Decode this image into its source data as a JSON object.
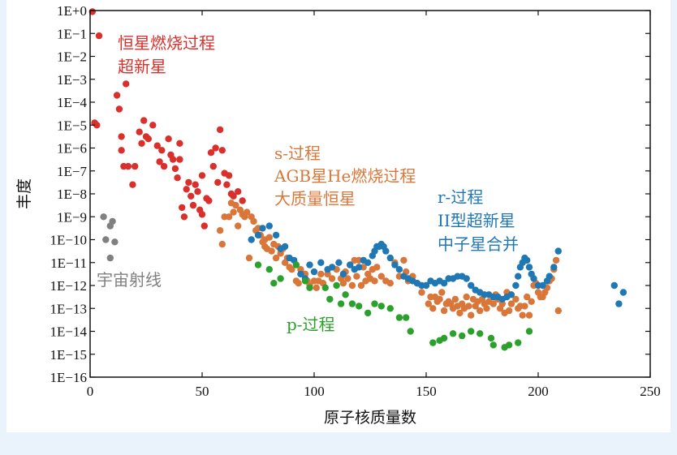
{
  "chart_data": {
    "type": "scatter",
    "xlabel": "原子核质量数",
    "ylabel": "丰度",
    "xlim": [
      0,
      250
    ],
    "ylim": [
      -16,
      0
    ],
    "y_scale": "log10",
    "xticks": [
      0,
      50,
      100,
      150,
      200,
      250
    ],
    "ytick_labels": [
      "1E+0",
      "1E−1",
      "1E−2",
      "1E−3",
      "1E−4",
      "1E−5",
      "1E−6",
      "1E−7",
      "1E−8",
      "1E−9",
      "1E−10",
      "1E−11",
      "1E−12",
      "1E−13",
      "1E−14",
      "1E−15",
      "1E−16"
    ],
    "grid": false,
    "annotations": [
      {
        "id": "red-1",
        "lines": [
          "恒星燃烧过程",
          "超新星"
        ],
        "color": "#d9302c"
      },
      {
        "id": "gray-1",
        "lines": [
          "宇宙射线"
        ],
        "color": "#808080"
      },
      {
        "id": "orange-1",
        "lines": [
          "s-过程",
          "AGB星He燃烧过程",
          "大质量恒星"
        ],
        "color": "#d9773a"
      },
      {
        "id": "blue-1",
        "lines": [
          "r-过程",
          "II型超新星",
          "中子星合并"
        ],
        "color": "#1f78b4"
      },
      {
        "id": "green-1",
        "lines": [
          "p-过程"
        ],
        "color": "#2ca02c"
      }
    ],
    "series": [
      {
        "color": "#d9302c",
        "points": [
          [
            1,
            -0.05
          ],
          [
            4,
            -1.1
          ],
          [
            2,
            -4.9
          ],
          [
            3,
            -5.0
          ],
          [
            12,
            -3.7
          ],
          [
            16,
            -3.2
          ],
          [
            13,
            -4.3
          ],
          [
            14,
            -5.5
          ],
          [
            14,
            -6.1
          ],
          [
            15,
            -6.8
          ],
          [
            17,
            -6.8
          ],
          [
            19,
            -7.6
          ],
          [
            20,
            -6.8
          ],
          [
            22,
            -5.3
          ],
          [
            24,
            -4.8
          ],
          [
            23,
            -5.8
          ],
          [
            25,
            -5.5
          ],
          [
            26,
            -5.6
          ],
          [
            28,
            -5.0
          ],
          [
            30,
            -5.9
          ],
          [
            31,
            -6.6
          ],
          [
            32,
            -6.1
          ],
          [
            33,
            -6.8
          ],
          [
            35,
            -5.6
          ],
          [
            36,
            -6.3
          ],
          [
            37,
            -6.5
          ],
          [
            38,
            -6.9
          ],
          [
            39,
            -7.3
          ],
          [
            40,
            -6.5
          ],
          [
            40,
            -5.8
          ],
          [
            41,
            -8.6
          ],
          [
            42,
            -9.0
          ],
          [
            43,
            -7.8
          ],
          [
            44,
            -7.5
          ],
          [
            45,
            -8.1
          ],
          [
            46,
            -8.5
          ],
          [
            47,
            -7.6
          ],
          [
            48,
            -7.9
          ],
          [
            49,
            -8.7
          ],
          [
            50,
            -8.9
          ],
          [
            50,
            -7.2
          ],
          [
            51,
            -9.4
          ],
          [
            52,
            -8.2
          ],
          [
            53,
            -8.3
          ],
          [
            54,
            -6.2
          ],
          [
            55,
            -6.8
          ],
          [
            56,
            -6.0
          ],
          [
            57,
            -7.5
          ],
          [
            58,
            -5.2
          ],
          [
            59,
            -6.1
          ],
          [
            60,
            -7.1
          ],
          [
            61,
            -7.6
          ],
          [
            62,
            -7.2
          ],
          [
            63,
            -8.0
          ],
          [
            64,
            -8.1
          ],
          [
            66,
            -7.9
          ],
          [
            68,
            -8.3
          ]
        ]
      },
      {
        "color": "#808080",
        "points": [
          [
            6,
            -9.0
          ],
          [
            7,
            -10.0
          ],
          [
            9,
            -10.8
          ],
          [
            9,
            -9.4
          ],
          [
            10,
            -9.2
          ],
          [
            11,
            -10.1
          ]
        ]
      },
      {
        "color": "#d9773a",
        "points": [
          [
            59,
            -10.2
          ],
          [
            60,
            -9.0
          ],
          [
            62,
            -9.0
          ],
          [
            63,
            -8.4
          ],
          [
            64,
            -8.8
          ],
          [
            65,
            -8.5
          ],
          [
            66,
            -9.4
          ],
          [
            67,
            -8.7
          ],
          [
            68,
            -8.9
          ],
          [
            69,
            -9.0
          ],
          [
            70,
            -8.8
          ],
          [
            71,
            -10.8
          ],
          [
            72,
            -9.0
          ],
          [
            73,
            -9.2
          ],
          [
            74,
            -9.6
          ],
          [
            75,
            -9.5
          ],
          [
            76,
            -9.8
          ],
          [
            77,
            -10.1
          ],
          [
            78,
            -10.0
          ],
          [
            79,
            -10.4
          ],
          [
            80,
            -9.9
          ],
          [
            81,
            -10.5
          ],
          [
            82,
            -10.2
          ],
          [
            83,
            -10.8
          ],
          [
            84,
            -10.3
          ],
          [
            85,
            -10.6
          ],
          [
            86,
            -10.4
          ],
          [
            87,
            -11.0
          ],
          [
            88,
            -10.8
          ],
          [
            89,
            -11.2
          ],
          [
            90,
            -11.3
          ],
          [
            92,
            -11.8
          ],
          [
            94,
            -11.3
          ],
          [
            95,
            -11.5
          ],
          [
            96,
            -11.5
          ],
          [
            97,
            -11.8
          ],
          [
            98,
            -12.0
          ],
          [
            100,
            -11.8
          ],
          [
            101,
            -12.1
          ],
          [
            102,
            -11.8
          ],
          [
            103,
            -11.5
          ],
          [
            104,
            -11.9
          ],
          [
            106,
            -11.5
          ],
          [
            108,
            -11.7
          ],
          [
            110,
            -11.3
          ],
          [
            112,
            -11.7
          ],
          [
            113,
            -11.9
          ],
          [
            114,
            -11.4
          ],
          [
            115,
            -11.7
          ],
          [
            116,
            -11.1
          ],
          [
            117,
            -12.0
          ],
          [
            118,
            -10.9
          ],
          [
            119,
            -11.6
          ],
          [
            120,
            -10.9
          ],
          [
            121,
            -12.0
          ],
          [
            122,
            -11.2
          ],
          [
            123,
            -11.8
          ],
          [
            124,
            -11.5
          ],
          [
            125,
            -11.7
          ],
          [
            126,
            -11.3
          ],
          [
            127,
            -11.8
          ],
          [
            128,
            -11.2
          ],
          [
            130,
            -11.6
          ],
          [
            132,
            -11.8
          ],
          [
            134,
            -11.9
          ],
          [
            136,
            -11.0
          ],
          [
            138,
            -11.6
          ],
          [
            140,
            -10.9
          ],
          [
            141,
            -11.4
          ],
          [
            142,
            -11.8
          ],
          [
            144,
            -11.6
          ],
          [
            146,
            -11.9
          ],
          [
            148,
            -12.3
          ],
          [
            150,
            -12.0
          ],
          [
            151,
            -12.8
          ],
          [
            152,
            -12.5
          ],
          [
            153,
            -13.0
          ],
          [
            154,
            -12.5
          ],
          [
            155,
            -12.7
          ],
          [
            156,
            -12.6
          ],
          [
            157,
            -12.3
          ],
          [
            158,
            -13.1
          ],
          [
            159,
            -12.8
          ],
          [
            160,
            -12.7
          ],
          [
            161,
            -12.8
          ],
          [
            162,
            -13.0
          ],
          [
            163,
            -12.6
          ],
          [
            164,
            -12.9
          ],
          [
            165,
            -13.2
          ],
          [
            166,
            -12.8
          ],
          [
            167,
            -13.0
          ],
          [
            168,
            -12.5
          ],
          [
            169,
            -12.9
          ],
          [
            170,
            -13.3
          ],
          [
            171,
            -12.6
          ],
          [
            172,
            -12.9
          ],
          [
            173,
            -12.7
          ],
          [
            174,
            -13.1
          ],
          [
            175,
            -12.6
          ],
          [
            176,
            -12.8
          ],
          [
            177,
            -13.0
          ],
          [
            178,
            -12.7
          ],
          [
            180,
            -12.8
          ],
          [
            181,
            -12.4
          ],
          [
            182,
            -12.6
          ],
          [
            183,
            -13.0
          ],
          [
            184,
            -12.8
          ],
          [
            185,
            -13.2
          ],
          [
            186,
            -12.3
          ],
          [
            187,
            -13.1
          ],
          [
            188,
            -12.8
          ],
          [
            190,
            -12.6
          ],
          [
            191,
            -13.0
          ],
          [
            192,
            -12.9
          ],
          [
            193,
            -13.3
          ],
          [
            194,
            -12.9
          ],
          [
            195,
            -12.5
          ],
          [
            196,
            -13.3
          ],
          [
            197,
            -12.7
          ],
          [
            198,
            -12.0
          ],
          [
            199,
            -11.9
          ],
          [
            200,
            -12.3
          ],
          [
            201,
            -12.5
          ],
          [
            202,
            -12.5
          ],
          [
            203,
            -12.3
          ],
          [
            204,
            -12.1
          ],
          [
            205,
            -11.8
          ],
          [
            206,
            -11.7
          ],
          [
            207,
            -11.3
          ],
          [
            208,
            -10.9
          ],
          [
            209,
            -13.1
          ],
          [
            58,
            -9.6
          ],
          [
            78,
            -10.3
          ],
          [
            93,
            -11.9
          ]
        ]
      },
      {
        "color": "#1f78b4",
        "points": [
          [
            72,
            -10.0
          ],
          [
            75,
            -9.8
          ],
          [
            77,
            -9.5
          ],
          [
            80,
            -9.4
          ],
          [
            83,
            -9.8
          ],
          [
            85,
            -10.4
          ],
          [
            87,
            -10.3
          ],
          [
            89,
            -10.8
          ],
          [
            91,
            -10.9
          ],
          [
            94,
            -11.5
          ],
          [
            96,
            -11.7
          ],
          [
            98,
            -11.1
          ],
          [
            100,
            -11.4
          ],
          [
            103,
            -11.0
          ],
          [
            106,
            -11.3
          ],
          [
            108,
            -11.2
          ],
          [
            111,
            -11.0
          ],
          [
            113,
            -11.5
          ],
          [
            116,
            -11.1
          ],
          [
            118,
            -11.3
          ],
          [
            120,
            -11.2
          ],
          [
            122,
            -10.9
          ],
          [
            124,
            -11.0
          ],
          [
            126,
            -10.7
          ],
          [
            127,
            -10.5
          ],
          [
            128,
            -10.3
          ],
          [
            129,
            -10.3
          ],
          [
            130,
            -10.2
          ],
          [
            131,
            -10.3
          ],
          [
            132,
            -10.5
          ],
          [
            134,
            -10.8
          ],
          [
            136,
            -11.1
          ],
          [
            138,
            -11.3
          ],
          [
            140,
            -11.6
          ],
          [
            142,
            -11.7
          ],
          [
            144,
            -11.8
          ],
          [
            146,
            -11.9
          ],
          [
            148,
            -12.0
          ],
          [
            150,
            -12.0
          ],
          [
            152,
            -11.8
          ],
          [
            154,
            -11.9
          ],
          [
            156,
            -11.8
          ],
          [
            158,
            -11.9
          ],
          [
            160,
            -11.7
          ],
          [
            162,
            -11.7
          ],
          [
            164,
            -11.6
          ],
          [
            166,
            -11.6
          ],
          [
            168,
            -11.7
          ],
          [
            170,
            -12.0
          ],
          [
            172,
            -12.2
          ],
          [
            174,
            -12.3
          ],
          [
            176,
            -12.4
          ],
          [
            178,
            -12.4
          ],
          [
            180,
            -12.5
          ],
          [
            182,
            -12.5
          ],
          [
            184,
            -12.6
          ],
          [
            186,
            -12.5
          ],
          [
            188,
            -12.4
          ],
          [
            190,
            -12.0
          ],
          [
            191,
            -11.6
          ],
          [
            192,
            -11.2
          ],
          [
            193,
            -11.0
          ],
          [
            194,
            -10.8
          ],
          [
            195,
            -10.9
          ],
          [
            196,
            -11.2
          ],
          [
            197,
            -11.5
          ],
          [
            198,
            -11.7
          ],
          [
            200,
            -12.0
          ],
          [
            202,
            -12.0
          ],
          [
            204,
            -11.8
          ],
          [
            205,
            -11.6
          ],
          [
            207,
            -11.2
          ],
          [
            209,
            -10.5
          ],
          [
            234,
            -12.0
          ],
          [
            236,
            -12.8
          ],
          [
            238,
            -12.3
          ]
        ]
      },
      {
        "color": "#2ca02c",
        "points": [
          [
            75,
            -11.1
          ],
          [
            80,
            -11.3
          ],
          [
            82,
            -11.9
          ],
          [
            85,
            -11.7
          ],
          [
            92,
            -11.1
          ],
          [
            96,
            -11.8
          ],
          [
            98,
            -12.1
          ],
          [
            105,
            -12.1
          ],
          [
            107,
            -12.6
          ],
          [
            110,
            -12.0
          ],
          [
            112,
            -12.8
          ],
          [
            114,
            -12.4
          ],
          [
            117,
            -12.8
          ],
          [
            120,
            -12.9
          ],
          [
            124,
            -13.2
          ],
          [
            127,
            -12.8
          ],
          [
            130,
            -12.9
          ],
          [
            134,
            -13.0
          ],
          [
            138,
            -13.4
          ],
          [
            141,
            -13.4
          ],
          [
            143,
            -14.0
          ],
          [
            153,
            -14.5
          ],
          [
            156,
            -14.4
          ],
          [
            158,
            -14.3
          ],
          [
            162,
            -14.1
          ],
          [
            166,
            -14.2
          ],
          [
            170,
            -14.0
          ],
          [
            174,
            -14.1
          ],
          [
            179,
            -14.3
          ],
          [
            180,
            -14.6
          ],
          [
            185,
            -14.7
          ],
          [
            187,
            -14.6
          ],
          [
            191,
            -14.5
          ],
          [
            196,
            -14.0
          ]
        ]
      }
    ]
  }
}
